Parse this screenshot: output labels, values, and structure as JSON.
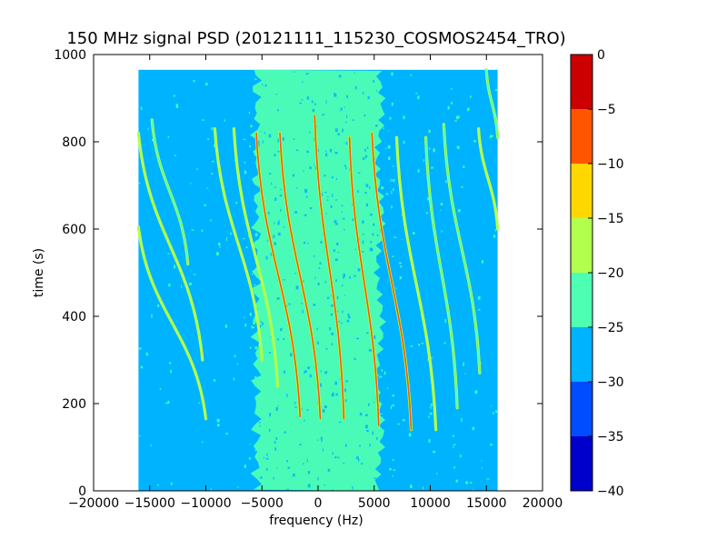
{
  "chart_data": {
    "type": "heatmap",
    "title": "150 MHz signal PSD (20121111_115230_COSMOS2454_TRO)",
    "xlabel": "frequency (Hz)",
    "ylabel": "time (s)",
    "xlim": [
      -20000,
      20000
    ],
    "ylim": [
      0,
      1000
    ],
    "xticks": [
      -20000,
      -15000,
      -10000,
      -5000,
      0,
      5000,
      10000,
      15000,
      20000
    ],
    "xtick_labels": [
      "−20000",
      "−15000",
      "−10000",
      "−5000",
      "0",
      "5000",
      "10000",
      "15000",
      "20000"
    ],
    "yticks": [
      0,
      200,
      400,
      600,
      800,
      1000
    ],
    "ytick_labels": [
      "0",
      "200",
      "400",
      "600",
      "800",
      "1000"
    ],
    "data_extent": {
      "x": [
        -16000,
        16000
      ],
      "y": [
        0,
        965
      ]
    },
    "background_level_db": -27.5,
    "center_band": {
      "x": [
        -5500,
        5500
      ],
      "level_db": -22.5
    },
    "colorbar": {
      "levels": [
        -40,
        -35,
        -30,
        -25,
        -20,
        -15,
        -10,
        -5,
        0
      ],
      "tick_labels": [
        "−40",
        "−35",
        "−30",
        "−25",
        "−20",
        "−15",
        "−10",
        "−5",
        "0"
      ],
      "colors": [
        "#0000cc",
        "#004cff",
        "#00b3ff",
        "#4dffb3",
        "#b3ff4d",
        "#ffd700",
        "#ff5500",
        "#cc0000"
      ]
    },
    "traces": [
      {
        "start": [
          -16000,
          605
        ],
        "end": [
          -10000,
          165
        ],
        "peak_level_db": -17.5
      },
      {
        "start": [
          -16000,
          820
        ],
        "end": [
          -10300,
          300
        ],
        "peak_level_db": -17.5
      },
      {
        "start": [
          -14800,
          850
        ],
        "end": [
          -11600,
          520
        ],
        "peak_level_db": -22.5
      },
      {
        "start": [
          -9200,
          830
        ],
        "end": [
          -5000,
          300
        ],
        "peak_level_db": -17.5
      },
      {
        "start": [
          -7500,
          830
        ],
        "end": [
          -3600,
          240
        ],
        "peak_level_db": -17.5
      },
      {
        "start": [
          -5500,
          820
        ],
        "end": [
          -1600,
          170
        ],
        "peak_level_db": -7.5
      },
      {
        "start": [
          -3400,
          820
        ],
        "end": [
          200,
          165
        ],
        "peak_level_db": -7.5
      },
      {
        "start": [
          -300,
          860
        ],
        "end": [
          2300,
          165
        ],
        "peak_level_db": -7.5
      },
      {
        "start": [
          2800,
          810
        ],
        "end": [
          5400,
          150
        ],
        "peak_level_db": -7.5
      },
      {
        "start": [
          4800,
          820
        ],
        "end": [
          8300,
          140
        ],
        "peak_level_db": -7.5
      },
      {
        "start": [
          7000,
          810
        ],
        "end": [
          10500,
          140
        ],
        "peak_level_db": -17.5
      },
      {
        "start": [
          9600,
          810
        ],
        "end": [
          12400,
          190
        ],
        "peak_level_db": -22.5
      },
      {
        "start": [
          11200,
          840
        ],
        "end": [
          14400,
          270
        ],
        "peak_level_db": -22.5
      },
      {
        "start": [
          14300,
          830
        ],
        "end": [
          16000,
          600
        ],
        "peak_level_db": -17.5
      },
      {
        "start": [
          15000,
          965
        ],
        "end": [
          16000,
          810
        ],
        "peak_level_db": -22.5
      }
    ]
  }
}
